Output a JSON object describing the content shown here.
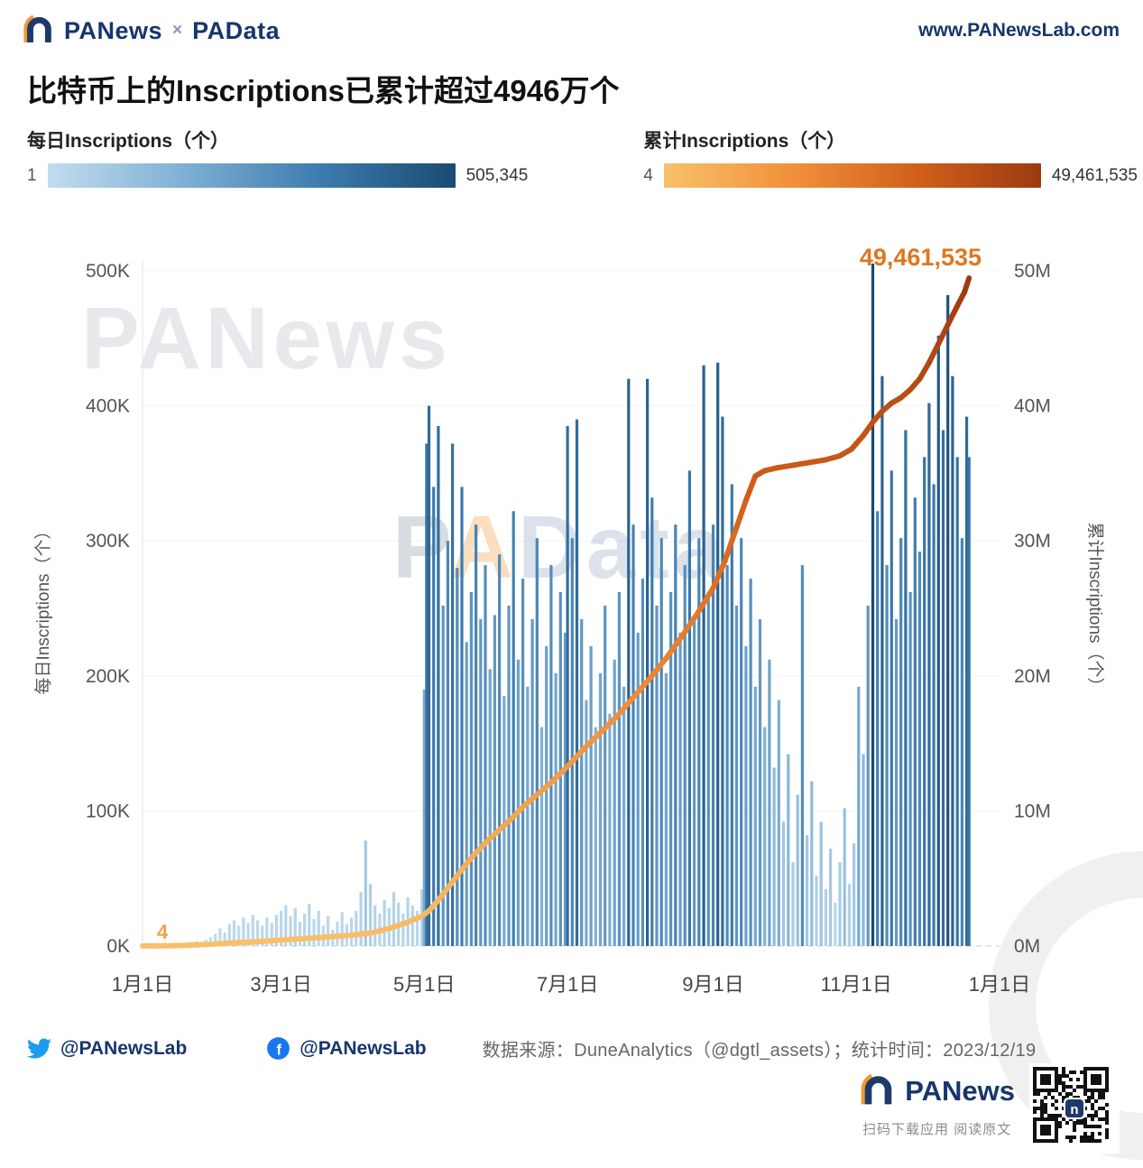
{
  "header": {
    "brand_primary": "PANews",
    "brand_separator": "×",
    "brand_secondary": "PAData",
    "website": "www.PANewsLab.com"
  },
  "title": "比特币上的Inscriptions已累计超过4946万个",
  "legends": {
    "daily": {
      "label": "每日Inscriptions（个）",
      "min": "1",
      "max": "505,345",
      "stops": [
        "#c3dcee",
        "#7fb0d5",
        "#3d7cae",
        "#1a4a73"
      ]
    },
    "cumulative": {
      "label": "累计Inscriptions（个）",
      "min": "4",
      "max": "49,461,535",
      "stops": [
        "#f9c06a",
        "#f2913c",
        "#d2601a",
        "#9c3a10"
      ]
    }
  },
  "chart": {
    "watermark_primary": "PANews",
    "watermark_secondary_parts": [
      "P",
      "A",
      "Data"
    ],
    "left_axis_title": "每日Inscriptions（个）",
    "right_axis_title": "累计Inscriptions（个）",
    "left_ticks": [
      [
        0,
        "0K"
      ],
      [
        100000,
        "100K"
      ],
      [
        200000,
        "200K"
      ],
      [
        300000,
        "300K"
      ],
      [
        400000,
        "400K"
      ],
      [
        500000,
        "500K"
      ]
    ],
    "right_ticks": [
      [
        0,
        "0M"
      ],
      [
        10000000,
        "10M"
      ],
      [
        20000000,
        "20M"
      ],
      [
        30000000,
        "30M"
      ],
      [
        40000000,
        "40M"
      ],
      [
        50000000,
        "50M"
      ]
    ],
    "x_ticks": [
      [
        0,
        "1月1日"
      ],
      [
        59,
        "3月1日"
      ],
      [
        120,
        "5月1日"
      ],
      [
        181,
        "7月1日"
      ],
      [
        243,
        "9月1日"
      ],
      [
        304,
        "11月1日"
      ],
      [
        365,
        "1月1日"
      ]
    ],
    "x_range_days": 365,
    "annotation_end": "49,461,535",
    "annotation_start": "4"
  },
  "chart_data": [
    {
      "type": "bar",
      "name": "每日Inscriptions（个）",
      "x_unit": "2023年内第几天（0 = 1月1日）",
      "ylim": [
        0,
        500000
      ],
      "max_value": 505345,
      "points": [
        [
          1,
          120
        ],
        [
          3,
          250
        ],
        [
          5,
          400
        ],
        [
          7,
          600
        ],
        [
          9,
          500
        ],
        [
          11,
          800
        ],
        [
          13,
          1100
        ],
        [
          15,
          1500
        ],
        [
          17,
          1900
        ],
        [
          19,
          2400
        ],
        [
          21,
          3000
        ],
        [
          23,
          3600
        ],
        [
          25,
          2800
        ],
        [
          27,
          4500
        ],
        [
          29,
          6500
        ],
        [
          31,
          9000
        ],
        [
          33,
          13000
        ],
        [
          35,
          10000
        ],
        [
          37,
          16000
        ],
        [
          39,
          19000
        ],
        [
          41,
          15000
        ],
        [
          43,
          21000
        ],
        [
          45,
          17000
        ],
        [
          47,
          23000
        ],
        [
          49,
          19000
        ],
        [
          51,
          15000
        ],
        [
          53,
          21000
        ],
        [
          55,
          17000
        ],
        [
          57,
          23000
        ],
        [
          59,
          26000
        ],
        [
          61,
          30000
        ],
        [
          63,
          22000
        ],
        [
          65,
          28000
        ],
        [
          67,
          18000
        ],
        [
          69,
          24000
        ],
        [
          71,
          31000
        ],
        [
          73,
          20000
        ],
        [
          75,
          26000
        ],
        [
          77,
          15000
        ],
        [
          79,
          22000
        ],
        [
          81,
          12000
        ],
        [
          83,
          18000
        ],
        [
          85,
          25000
        ],
        [
          87,
          16000
        ],
        [
          89,
          21000
        ],
        [
          91,
          26000
        ],
        [
          93,
          40000
        ],
        [
          95,
          78000
        ],
        [
          97,
          46000
        ],
        [
          99,
          30000
        ],
        [
          101,
          24000
        ],
        [
          103,
          34000
        ],
        [
          105,
          28000
        ],
        [
          107,
          40000
        ],
        [
          109,
          32000
        ],
        [
          111,
          24000
        ],
        [
          113,
          36000
        ],
        [
          115,
          30000
        ],
        [
          117,
          26000
        ],
        [
          119,
          42000
        ],
        [
          120,
          190000
        ],
        [
          121,
          372000
        ],
        [
          122,
          400000
        ],
        [
          124,
          340000
        ],
        [
          126,
          385000
        ],
        [
          128,
          252000
        ],
        [
          130,
          300000
        ],
        [
          132,
          372000
        ],
        [
          134,
          280000
        ],
        [
          136,
          340000
        ],
        [
          138,
          225000
        ],
        [
          140,
          262000
        ],
        [
          142,
          312000
        ],
        [
          144,
          242000
        ],
        [
          146,
          282000
        ],
        [
          148,
          205000
        ],
        [
          150,
          245000
        ],
        [
          152,
          290000
        ],
        [
          154,
          185000
        ],
        [
          156,
          252000
        ],
        [
          158,
          322000
        ],
        [
          160,
          212000
        ],
        [
          162,
          272000
        ],
        [
          164,
          192000
        ],
        [
          166,
          242000
        ],
        [
          168,
          302000
        ],
        [
          170,
          162000
        ],
        [
          172,
          222000
        ],
        [
          174,
          282000
        ],
        [
          176,
          202000
        ],
        [
          178,
          262000
        ],
        [
          180,
          232000
        ],
        [
          181,
          385000
        ],
        [
          183,
          302000
        ],
        [
          185,
          390000
        ],
        [
          187,
          242000
        ],
        [
          189,
          182000
        ],
        [
          191,
          222000
        ],
        [
          193,
          162000
        ],
        [
          195,
          202000
        ],
        [
          197,
          252000
        ],
        [
          199,
          172000
        ],
        [
          201,
          212000
        ],
        [
          203,
          262000
        ],
        [
          205,
          192000
        ],
        [
          207,
          420000
        ],
        [
          209,
          312000
        ],
        [
          211,
          232000
        ],
        [
          213,
          272000
        ],
        [
          215,
          420000
        ],
        [
          217,
          332000
        ],
        [
          219,
          252000
        ],
        [
          221,
          302000
        ],
        [
          223,
          202000
        ],
        [
          225,
          262000
        ],
        [
          227,
          312000
        ],
        [
          229,
          232000
        ],
        [
          231,
          282000
        ],
        [
          233,
          352000
        ],
        [
          235,
          242000
        ],
        [
          237,
          302000
        ],
        [
          239,
          430000
        ],
        [
          241,
          262000
        ],
        [
          243,
          312000
        ],
        [
          245,
          432000
        ],
        [
          247,
          392000
        ],
        [
          249,
          282000
        ],
        [
          251,
          342000
        ],
        [
          253,
          252000
        ],
        [
          255,
          302000
        ],
        [
          257,
          222000
        ],
        [
          259,
          272000
        ],
        [
          261,
          192000
        ],
        [
          263,
          242000
        ],
        [
          265,
          162000
        ],
        [
          267,
          212000
        ],
        [
          269,
          132000
        ],
        [
          271,
          182000
        ],
        [
          273,
          92000
        ],
        [
          275,
          142000
        ],
        [
          277,
          62000
        ],
        [
          279,
          112000
        ],
        [
          281,
          282000
        ],
        [
          283,
          82000
        ],
        [
          285,
          122000
        ],
        [
          287,
          52000
        ],
        [
          289,
          92000
        ],
        [
          291,
          42000
        ],
        [
          293,
          72000
        ],
        [
          295,
          32000
        ],
        [
          297,
          62000
        ],
        [
          299,
          102000
        ],
        [
          301,
          46000
        ],
        [
          303,
          76000
        ],
        [
          305,
          192000
        ],
        [
          307,
          142000
        ],
        [
          309,
          252000
        ],
        [
          311,
          505345
        ],
        [
          313,
          322000
        ],
        [
          315,
          422000
        ],
        [
          317,
          282000
        ],
        [
          319,
          352000
        ],
        [
          321,
          242000
        ],
        [
          323,
          302000
        ],
        [
          325,
          382000
        ],
        [
          327,
          262000
        ],
        [
          329,
          332000
        ],
        [
          331,
          292000
        ],
        [
          333,
          362000
        ],
        [
          335,
          402000
        ],
        [
          337,
          342000
        ],
        [
          339,
          452000
        ],
        [
          341,
          382000
        ],
        [
          343,
          482000
        ],
        [
          345,
          422000
        ],
        [
          347,
          362000
        ],
        [
          349,
          302000
        ],
        [
          351,
          392000
        ],
        [
          352,
          362000
        ]
      ]
    },
    {
      "type": "line",
      "name": "累计Inscriptions（个）",
      "x_unit": "2023年内第几天（0 = 1月1日）",
      "ylim": [
        0,
        50000000
      ],
      "final_value": 49461535,
      "points": [
        [
          0,
          4
        ],
        [
          14,
          20000
        ],
        [
          28,
          120000
        ],
        [
          35,
          180000
        ],
        [
          42,
          250000
        ],
        [
          49,
          320000
        ],
        [
          56,
          400000
        ],
        [
          63,
          480000
        ],
        [
          70,
          560000
        ],
        [
          77,
          640000
        ],
        [
          84,
          730000
        ],
        [
          91,
          830000
        ],
        [
          98,
          980000
        ],
        [
          105,
          1300000
        ],
        [
          112,
          1700000
        ],
        [
          119,
          2200000
        ],
        [
          122,
          2600000
        ],
        [
          126,
          3400000
        ],
        [
          130,
          4300000
        ],
        [
          134,
          5200000
        ],
        [
          138,
          6100000
        ],
        [
          142,
          6900000
        ],
        [
          147,
          7800000
        ],
        [
          152,
          8600000
        ],
        [
          157,
          9400000
        ],
        [
          162,
          10300000
        ],
        [
          168,
          11200000
        ],
        [
          174,
          12100000
        ],
        [
          181,
          13300000
        ],
        [
          188,
          14600000
        ],
        [
          195,
          15800000
        ],
        [
          202,
          17000000
        ],
        [
          209,
          18400000
        ],
        [
          216,
          19800000
        ],
        [
          223,
          21300000
        ],
        [
          230,
          23000000
        ],
        [
          237,
          24800000
        ],
        [
          243,
          26500000
        ],
        [
          248,
          28500000
        ],
        [
          253,
          31000000
        ],
        [
          257,
          33000000
        ],
        [
          261,
          34800000
        ],
        [
          265,
          35200000
        ],
        [
          270,
          35400000
        ],
        [
          277,
          35600000
        ],
        [
          284,
          35800000
        ],
        [
          291,
          36000000
        ],
        [
          297,
          36300000
        ],
        [
          302,
          36800000
        ],
        [
          307,
          37800000
        ],
        [
          311,
          38800000
        ],
        [
          315,
          39600000
        ],
        [
          319,
          40200000
        ],
        [
          323,
          40600000
        ],
        [
          327,
          41200000
        ],
        [
          331,
          42000000
        ],
        [
          335,
          43200000
        ],
        [
          339,
          44600000
        ],
        [
          343,
          46000000
        ],
        [
          347,
          47400000
        ],
        [
          350,
          48400000
        ],
        [
          352,
          49461535
        ]
      ]
    }
  ],
  "footer": {
    "twitter_handle": "@PANewsLab",
    "facebook_handle": "@PANewsLab",
    "source_text": "数据来源：DuneAnalytics（@dgtl_assets）；统计时间：2023/12/19",
    "brand": "PANews",
    "qr_caption": "扫码下载应用 阅读原文"
  }
}
